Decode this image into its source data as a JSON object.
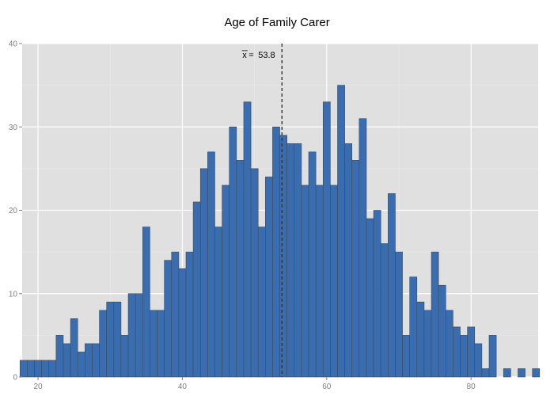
{
  "chart_data": {
    "type": "bar",
    "title": "Age of Family Carer",
    "xlabel": "",
    "ylabel": "",
    "xlim": [
      17.8,
      89.3
    ],
    "ylim": [
      0,
      40
    ],
    "x_ticks": [
      20,
      40,
      60,
      80
    ],
    "y_ticks": [
      0,
      10,
      20,
      30,
      40
    ],
    "grid": true,
    "bin_width": 1,
    "bins": [
      {
        "x": 18,
        "count": 2
      },
      {
        "x": 19,
        "count": 2
      },
      {
        "x": 20,
        "count": 2
      },
      {
        "x": 21,
        "count": 2
      },
      {
        "x": 22,
        "count": 2
      },
      {
        "x": 23,
        "count": 5
      },
      {
        "x": 24,
        "count": 4
      },
      {
        "x": 25,
        "count": 7
      },
      {
        "x": 26,
        "count": 3
      },
      {
        "x": 27,
        "count": 4
      },
      {
        "x": 28,
        "count": 4
      },
      {
        "x": 29,
        "count": 8
      },
      {
        "x": 30,
        "count": 9
      },
      {
        "x": 31,
        "count": 9
      },
      {
        "x": 32,
        "count": 5
      },
      {
        "x": 33,
        "count": 10
      },
      {
        "x": 34,
        "count": 10
      },
      {
        "x": 35,
        "count": 18
      },
      {
        "x": 36,
        "count": 8
      },
      {
        "x": 37,
        "count": 8
      },
      {
        "x": 38,
        "count": 14
      },
      {
        "x": 39,
        "count": 15
      },
      {
        "x": 40,
        "count": 13
      },
      {
        "x": 41,
        "count": 15
      },
      {
        "x": 42,
        "count": 21
      },
      {
        "x": 43,
        "count": 25
      },
      {
        "x": 44,
        "count": 27
      },
      {
        "x": 45,
        "count": 18
      },
      {
        "x": 46,
        "count": 23
      },
      {
        "x": 47,
        "count": 30
      },
      {
        "x": 48,
        "count": 26
      },
      {
        "x": 49,
        "count": 33
      },
      {
        "x": 50,
        "count": 25
      },
      {
        "x": 51,
        "count": 18
      },
      {
        "x": 52,
        "count": 24
      },
      {
        "x": 53,
        "count": 30
      },
      {
        "x": 54,
        "count": 29
      },
      {
        "x": 55,
        "count": 28
      },
      {
        "x": 56,
        "count": 28
      },
      {
        "x": 57,
        "count": 23
      },
      {
        "x": 58,
        "count": 27
      },
      {
        "x": 59,
        "count": 23
      },
      {
        "x": 60,
        "count": 33
      },
      {
        "x": 61,
        "count": 23
      },
      {
        "x": 62,
        "count": 35
      },
      {
        "x": 63,
        "count": 28
      },
      {
        "x": 64,
        "count": 26
      },
      {
        "x": 65,
        "count": 31
      },
      {
        "x": 66,
        "count": 19
      },
      {
        "x": 67,
        "count": 20
      },
      {
        "x": 68,
        "count": 16
      },
      {
        "x": 69,
        "count": 22
      },
      {
        "x": 70,
        "count": 15
      },
      {
        "x": 71,
        "count": 5
      },
      {
        "x": 72,
        "count": 12
      },
      {
        "x": 73,
        "count": 9
      },
      {
        "x": 74,
        "count": 8
      },
      {
        "x": 75,
        "count": 15
      },
      {
        "x": 76,
        "count": 11
      },
      {
        "x": 77,
        "count": 8
      },
      {
        "x": 78,
        "count": 6
      },
      {
        "x": 79,
        "count": 5
      },
      {
        "x": 80,
        "count": 6
      },
      {
        "x": 81,
        "count": 4
      },
      {
        "x": 82,
        "count": 1
      },
      {
        "x": 83,
        "count": 5
      },
      {
        "x": 84,
        "count": 0
      },
      {
        "x": 85,
        "count": 1
      },
      {
        "x": 86,
        "count": 0
      },
      {
        "x": 87,
        "count": 1
      },
      {
        "x": 88,
        "count": 0
      },
      {
        "x": 89,
        "count": 1
      }
    ],
    "mean": 53.8,
    "mean_annotation": "53.8",
    "mean_symbol": "x",
    "colors": {
      "bar_fill": "#3a6db0",
      "bar_stroke": "#3f4a57",
      "panel_bg": "#e0e0e0",
      "grid_major": "#ffffff",
      "grid_minor": "#ebebeb",
      "mean_line": "#333333"
    }
  }
}
